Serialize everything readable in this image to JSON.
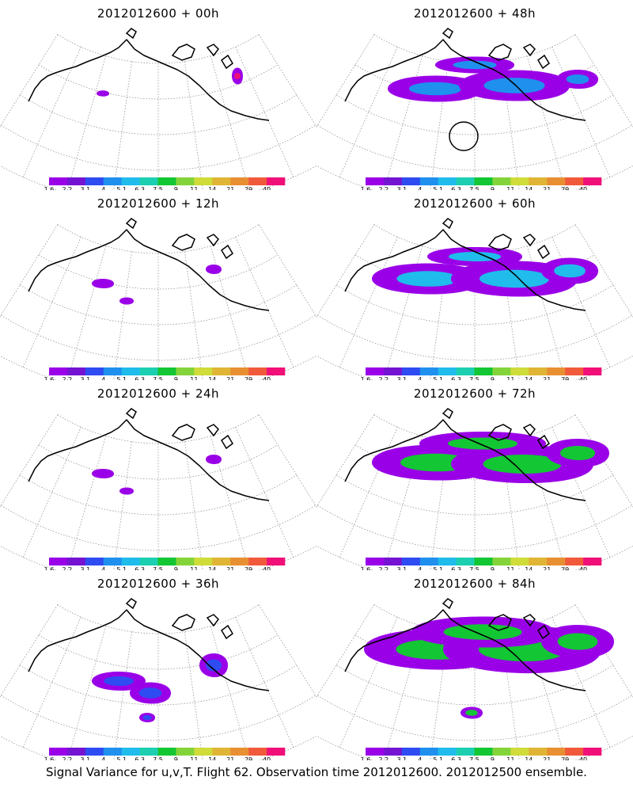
{
  "colorbar": {
    "labels": [
      "1.6",
      "2.2",
      "3.1",
      "4",
      "5.1",
      "6.3",
      "7.5",
      "9",
      "11",
      "14",
      "21",
      "29",
      "40"
    ],
    "colors": [
      "#9a00e8",
      "#7414d2",
      "#2e4cf2",
      "#1f90ee",
      "#20bcec",
      "#1ccfb1",
      "#13c634",
      "#83d43a",
      "#cfdc3a",
      "#e0b535",
      "#e88f32",
      "#f05a3a",
      "#f01078"
    ]
  },
  "panels": [
    {
      "title": "2012012600  + 00h",
      "column": "left",
      "row": 0,
      "signal_level": 0
    },
    {
      "title": "2012012600  + 48h",
      "column": "right",
      "row": 0,
      "signal_level": 3
    },
    {
      "title": "2012012600  + 12h",
      "column": "left",
      "row": 1,
      "signal_level": 1
    },
    {
      "title": "2012012600  + 60h",
      "column": "right",
      "row": 1,
      "signal_level": 4
    },
    {
      "title": "2012012600  + 24h",
      "column": "left",
      "row": 2,
      "signal_level": 1
    },
    {
      "title": "2012012600  + 72h",
      "column": "right",
      "row": 2,
      "signal_level": 5
    },
    {
      "title": "2012012600  + 36h",
      "column": "left",
      "row": 3,
      "signal_level": 2
    },
    {
      "title": "2012012600  + 84h",
      "column": "right",
      "row": 3,
      "signal_level": 6
    }
  ],
  "caption": "Signal Variance for u,v,T. Flight 62. Observation time 2012012600. 2012012500 ensemble."
}
